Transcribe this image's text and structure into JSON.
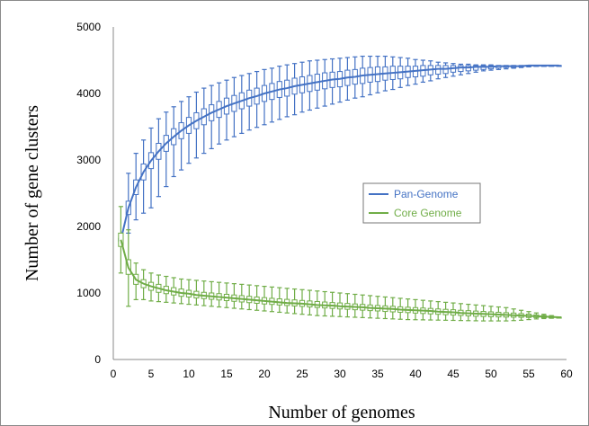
{
  "chart_data": {
    "type": "line",
    "xlabel": "Number of genomes",
    "ylabel": "Number of gene clusters",
    "xlim": [
      0,
      60
    ],
    "ylim": [
      0,
      5000
    ],
    "x_ticks": [
      "0",
      "5",
      "10",
      "15",
      "20",
      "25",
      "30",
      "35",
      "40",
      "45",
      "50",
      "55",
      "60"
    ],
    "y_ticks": [
      "0",
      "1000",
      "2000",
      "3000",
      "4000",
      "5000"
    ],
    "grid": false,
    "legend_position": "center-right",
    "series": [
      {
        "name": "Pan-Genome",
        "color": "#4472C4",
        "x": [
          1,
          2,
          3,
          4,
          5,
          6,
          7,
          8,
          9,
          10,
          11,
          12,
          13,
          14,
          15,
          16,
          17,
          18,
          19,
          20,
          21,
          22,
          23,
          24,
          25,
          26,
          27,
          28,
          29,
          30,
          31,
          32,
          33,
          34,
          35,
          36,
          37,
          38,
          39,
          40,
          41,
          42,
          43,
          44,
          45,
          46,
          47,
          48,
          49,
          50,
          51,
          52,
          53,
          54,
          55,
          56,
          57,
          58,
          59
        ],
        "median": [
          1800,
          2280,
          2590,
          2820,
          2990,
          3130,
          3250,
          3350,
          3440,
          3520,
          3590,
          3650,
          3710,
          3760,
          3810,
          3850,
          3890,
          3930,
          3960,
          4000,
          4030,
          4060,
          4080,
          4110,
          4130,
          4150,
          4170,
          4190,
          4210,
          4220,
          4240,
          4250,
          4270,
          4280,
          4290,
          4300,
          4310,
          4320,
          4330,
          4340,
          4350,
          4360,
          4370,
          4370,
          4380,
          4390,
          4390,
          4400,
          4400,
          4400,
          4410,
          4410,
          4410,
          4410,
          4420,
          4420,
          4420,
          4420,
          4420
        ],
        "q1": [
          1780,
          2180,
          2480,
          2700,
          2870,
          3010,
          3130,
          3230,
          3320,
          3400,
          3470,
          3530,
          3590,
          3640,
          3690,
          3730,
          3770,
          3810,
          3840,
          3880,
          3910,
          3940,
          3960,
          3990,
          4010,
          4030,
          4050,
          4070,
          4090,
          4100,
          4120,
          4140,
          4150,
          4170,
          4180,
          4200,
          4210,
          4220,
          4240,
          4250,
          4260,
          4280,
          4290,
          4300,
          4320,
          4330,
          4340,
          4350,
          4360,
          4370,
          4380,
          4390,
          4390,
          4400,
          4410,
          4410,
          4420,
          4420,
          4420
        ],
        "q3": [
          1820,
          2380,
          2700,
          2940,
          3110,
          3250,
          3370,
          3470,
          3560,
          3640,
          3710,
          3770,
          3830,
          3880,
          3930,
          3970,
          4010,
          4050,
          4080,
          4120,
          4150,
          4180,
          4200,
          4230,
          4250,
          4270,
          4290,
          4310,
          4320,
          4330,
          4350,
          4360,
          4380,
          4390,
          4400,
          4400,
          4410,
          4410,
          4410,
          4410,
          4420,
          4420,
          4420,
          4420,
          4420,
          4420,
          4420,
          4420,
          4420,
          4420,
          4420,
          4420,
          4420,
          4420,
          4420,
          4420,
          4420,
          4420,
          4420
        ],
        "min": [
          1720,
          1900,
          2100,
          2200,
          2280,
          2450,
          2600,
          2750,
          2850,
          2950,
          3030,
          3100,
          3170,
          3240,
          3300,
          3350,
          3400,
          3450,
          3490,
          3530,
          3570,
          3610,
          3650,
          3680,
          3720,
          3750,
          3780,
          3810,
          3840,
          3870,
          3900,
          3930,
          3950,
          3980,
          4010,
          4040,
          4060,
          4090,
          4120,
          4140,
          4170,
          4190,
          4220,
          4240,
          4260,
          4280,
          4300,
          4320,
          4340,
          4350,
          4360,
          4370,
          4380,
          4390,
          4400,
          4410,
          4410,
          4420,
          4420
        ],
        "max": [
          1880,
          2800,
          3100,
          3300,
          3480,
          3620,
          3720,
          3800,
          3880,
          3950,
          4020,
          4080,
          4120,
          4160,
          4200,
          4240,
          4270,
          4300,
          4330,
          4360,
          4380,
          4410,
          4430,
          4450,
          4470,
          4490,
          4500,
          4510,
          4520,
          4530,
          4540,
          4550,
          4560,
          4560,
          4560,
          4560,
          4550,
          4540,
          4530,
          4510,
          4500,
          4490,
          4470,
          4460,
          4450,
          4440,
          4440,
          4430,
          4430,
          4430,
          4420,
          4420,
          4420,
          4420,
          4420,
          4420,
          4420,
          4420,
          4420
        ]
      },
      {
        "name": "Core Genome",
        "color": "#70AD47",
        "x": [
          1,
          2,
          3,
          4,
          5,
          6,
          7,
          8,
          9,
          10,
          11,
          12,
          13,
          14,
          15,
          16,
          17,
          18,
          19,
          20,
          21,
          22,
          23,
          24,
          25,
          26,
          27,
          28,
          29,
          30,
          31,
          32,
          33,
          34,
          35,
          36,
          37,
          38,
          39,
          40,
          41,
          42,
          43,
          44,
          45,
          46,
          47,
          48,
          49,
          50,
          51,
          52,
          53,
          54,
          55,
          56,
          57,
          58,
          59
        ],
        "median": [
          1800,
          1380,
          1200,
          1140,
          1100,
          1070,
          1040,
          1020,
          1000,
          990,
          970,
          960,
          950,
          940,
          930,
          920,
          910,
          900,
          890,
          880,
          870,
          860,
          850,
          845,
          840,
          830,
          820,
          815,
          810,
          800,
          795,
          790,
          785,
          775,
          770,
          765,
          760,
          750,
          745,
          740,
          735,
          730,
          720,
          715,
          710,
          700,
          695,
          690,
          685,
          680,
          675,
          670,
          665,
          660,
          655,
          650,
          645,
          640,
          635
        ],
        "q1": [
          1700,
          1280,
          1130,
          1080,
          1040,
          1010,
          990,
          970,
          950,
          940,
          925,
          915,
          905,
          895,
          885,
          875,
          865,
          855,
          845,
          835,
          828,
          820,
          812,
          805,
          798,
          790,
          782,
          775,
          768,
          760,
          755,
          748,
          742,
          735,
          730,
          722,
          716,
          710,
          705,
          698,
          692,
          686,
          680,
          674,
          668,
          662,
          656,
          650,
          646,
          642,
          640,
          638,
          636,
          634,
          632,
          630,
          628,
          626,
          625
        ],
        "q3": [
          1900,
          1500,
          1280,
          1200,
          1160,
          1130,
          1100,
          1080,
          1060,
          1040,
          1025,
          1010,
          1000,
          990,
          980,
          970,
          960,
          950,
          940,
          930,
          920,
          912,
          904,
          896,
          888,
          880,
          872,
          864,
          856,
          850,
          842,
          835,
          828,
          820,
          812,
          806,
          800,
          792,
          786,
          780,
          774,
          768,
          760,
          754,
          748,
          740,
          734,
          728,
          722,
          716,
          710,
          704,
          698,
          690,
          682,
          672,
          662,
          650,
          635
        ],
        "min": [
          1300,
          800,
          900,
          900,
          880,
          870,
          860,
          850,
          840,
          830,
          820,
          810,
          800,
          790,
          780,
          770,
          760,
          750,
          740,
          730,
          720,
          710,
          700,
          690,
          680,
          670,
          660,
          655,
          650,
          645,
          640,
          635,
          630,
          625,
          620,
          615,
          610,
          605,
          600,
          598,
          596,
          594,
          592,
          590,
          588,
          586,
          584,
          582,
          580,
          580,
          580,
          580,
          585,
          590,
          600,
          610,
          615,
          620,
          625
        ],
        "max": [
          2300,
          1950,
          1450,
          1350,
          1300,
          1270,
          1250,
          1230,
          1210,
          1200,
          1190,
          1180,
          1170,
          1160,
          1150,
          1140,
          1130,
          1120,
          1110,
          1100,
          1090,
          1080,
          1070,
          1060,
          1050,
          1040,
          1030,
          1020,
          1010,
          1000,
          990,
          980,
          970,
          960,
          950,
          940,
          930,
          920,
          910,
          900,
          890,
          880,
          870,
          860,
          850,
          840,
          830,
          820,
          810,
          800,
          790,
          780,
          760,
          740,
          720,
          700,
          680,
          660,
          640
        ]
      }
    ]
  }
}
